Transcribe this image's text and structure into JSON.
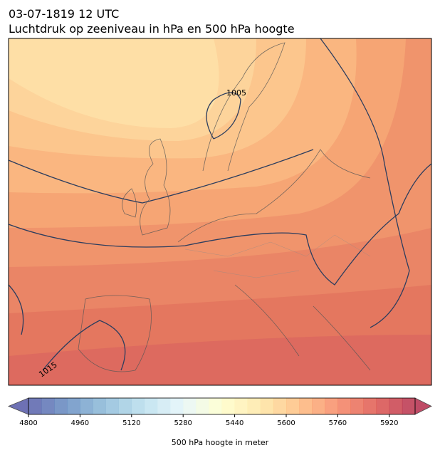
{
  "chart_data": {
    "type": "map",
    "title": "03-07-1819 12 UTC",
    "subtitle": "Luchtdruk op zeeniveau in hPa en 500 hPa hoogte",
    "contour_labels": [
      1005,
      1015
    ],
    "colorbar": {
      "label": "500 hPa hoogte in meter",
      "lim": [
        4800,
        6000
      ],
      "step": 40,
      "ticks": [
        4800,
        4960,
        5120,
        5280,
        5440,
        5600,
        5760,
        5920
      ],
      "colors": [
        "#313695",
        "#4575b4",
        "#74add1",
        "#abd9e9",
        "#e0f3f8",
        "#ffffbf",
        "#fee090",
        "#fdae61",
        "#f46d43",
        "#d73027",
        "#a50026"
      ]
    }
  }
}
